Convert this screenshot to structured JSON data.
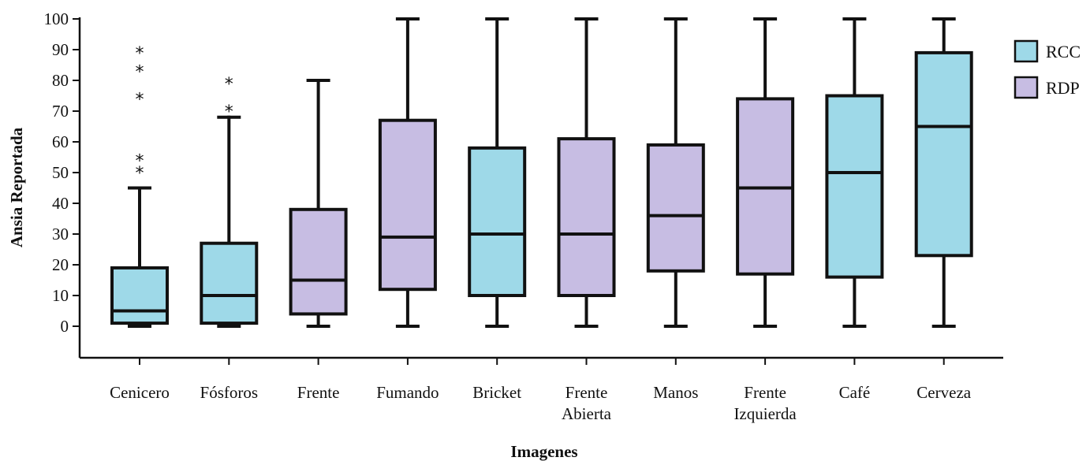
{
  "chart_data": {
    "type": "boxplot",
    "title": "",
    "xlabel": "Imagenes",
    "ylabel": "Ansia Reportada",
    "ylim": [
      0,
      100
    ],
    "yticks": [
      0,
      10,
      20,
      30,
      40,
      50,
      60,
      70,
      80,
      90,
      100
    ],
    "grid": false,
    "legend_position": "top-right",
    "series": [
      {
        "name": "RCC",
        "color": "#9ed9e8"
      },
      {
        "name": "RDP",
        "color": "#c7bde3"
      }
    ],
    "boxes": [
      {
        "category": [
          "Cenicero"
        ],
        "series": "RCC",
        "min": 0,
        "q1": 1,
        "median": 5,
        "q3": 19,
        "max": 45,
        "outliers": [
          51,
          55,
          75,
          84,
          90
        ]
      },
      {
        "category": [
          "Fósforos"
        ],
        "series": "RCC",
        "min": 0,
        "q1": 1,
        "median": 10,
        "q3": 27,
        "max": 68,
        "outliers": [
          71,
          80
        ]
      },
      {
        "category": [
          "Frente"
        ],
        "series": "RDP",
        "min": 0,
        "q1": 4,
        "median": 15,
        "q3": 38,
        "max": 80,
        "outliers": []
      },
      {
        "category": [
          "Fumando"
        ],
        "series": "RDP",
        "min": 0,
        "q1": 12,
        "median": 29,
        "q3": 67,
        "max": 100,
        "outliers": []
      },
      {
        "category": [
          "Bricket"
        ],
        "series": "RCC",
        "min": 0,
        "q1": 10,
        "median": 30,
        "q3": 58,
        "max": 100,
        "outliers": []
      },
      {
        "category": [
          "Frente",
          "Abierta"
        ],
        "series": "RDP",
        "min": 0,
        "q1": 10,
        "median": 30,
        "q3": 61,
        "max": 100,
        "outliers": []
      },
      {
        "category": [
          "Manos"
        ],
        "series": "RDP",
        "min": 0,
        "q1": 18,
        "median": 36,
        "q3": 59,
        "max": 100,
        "outliers": []
      },
      {
        "category": [
          "Frente",
          "Izquierda"
        ],
        "series": "RDP",
        "min": 0,
        "q1": 17,
        "median": 45,
        "q3": 74,
        "max": 100,
        "outliers": []
      },
      {
        "category": [
          "Café"
        ],
        "series": "RCC",
        "min": 0,
        "q1": 16,
        "median": 50,
        "q3": 75,
        "max": 100,
        "outliers": []
      },
      {
        "category": [
          "Cerveza"
        ],
        "series": "RCC",
        "min": 0,
        "q1": 23,
        "median": 65,
        "q3": 89,
        "max": 100,
        "outliers": []
      }
    ],
    "outlier_marker": "*"
  }
}
